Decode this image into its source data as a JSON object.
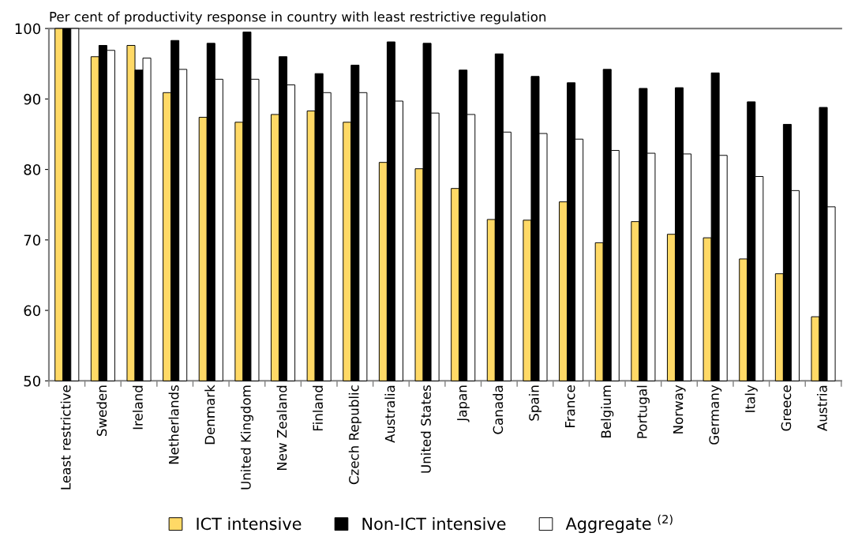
{
  "chart_data": {
    "type": "bar",
    "ylabel": "Per cent of productivity response in country with least restrictive regulation",
    "categories": [
      "Least restrictive",
      "Sweden",
      "Ireland",
      "Netherlands",
      "Denmark",
      "United Kingdom",
      "New Zealand",
      "Finland",
      "Czech Republic",
      "Australia",
      "United States",
      "Japan",
      "Canada",
      "Spain",
      "France",
      "Belgium",
      "Portugal",
      "Norway",
      "Germany",
      "Italy",
      "Greece",
      "Austria"
    ],
    "series": [
      {
        "name": "ICT intensive",
        "color": "#ffd966",
        "values": [
          100,
          96.0,
          97.6,
          90.9,
          87.4,
          86.7,
          87.8,
          88.3,
          86.7,
          81.0,
          80.1,
          77.3,
          72.9,
          72.8,
          75.4,
          69.6,
          72.6,
          70.8,
          70.3,
          67.3,
          65.2,
          59.1
        ]
      },
      {
        "name": "Non-ICT intensive",
        "color": "#000000",
        "values": [
          100,
          97.6,
          94.1,
          98.3,
          97.9,
          99.5,
          96.0,
          93.6,
          94.8,
          98.1,
          97.9,
          94.1,
          96.4,
          93.2,
          92.3,
          94.2,
          91.5,
          91.6,
          93.7,
          89.6,
          86.4,
          88.8
        ]
      },
      {
        "name": "Aggregate $^{(2)}$",
        "color": "#ffffff",
        "values": [
          100,
          96.9,
          95.8,
          94.2,
          92.8,
          92.8,
          92.0,
          90.9,
          90.9,
          89.7,
          88.0,
          87.8,
          85.3,
          85.1,
          84.3,
          82.7,
          82.3,
          82.2,
          82.0,
          79.0,
          77.0,
          74.7
        ]
      }
    ],
    "ylim": [
      50,
      100
    ],
    "yticks": [
      50,
      60,
      70,
      80,
      90,
      100
    ],
    "grid": false,
    "legend": "bottom"
  }
}
